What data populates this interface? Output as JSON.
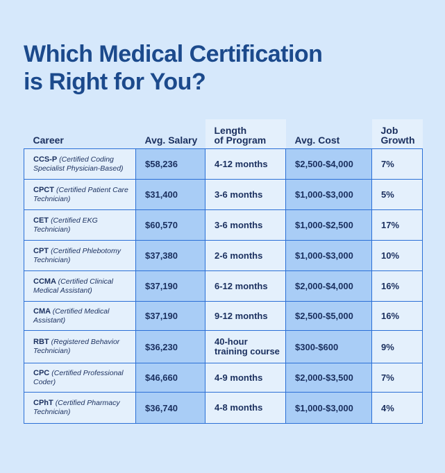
{
  "title": {
    "line1": "Which Medical Certification",
    "line2": "is Right for You?"
  },
  "colors": {
    "background": "#d6e8fb",
    "title": "#1c4a8c",
    "cell_light": "#e4f0fc",
    "cell_shaded": "#a9cdf6",
    "border": "#2a6fd6"
  },
  "table": {
    "headers": {
      "career": "Career",
      "salary": "Avg. Salary",
      "length_line1": "Length",
      "length_line2": "of Program",
      "cost": "Avg. Cost",
      "growth_line1": "Job",
      "growth_line2": "Growth"
    },
    "rows": [
      {
        "name": "CCS-P",
        "desc": "(Certified Coding Specialist Physician-Based)",
        "salary": "$58,236",
        "length": "4-12 months",
        "length2": "",
        "cost": "$2,500-$4,000",
        "growth": "7%"
      },
      {
        "name": "CPCT",
        "desc": "(Certified Patient Care Technician)",
        "salary": "$31,400",
        "length": "3-6 months",
        "length2": "",
        "cost": "$1,000-$3,000",
        "growth": "5%"
      },
      {
        "name": "CET",
        "desc": "(Certified EKG Technician)",
        "salary": "$60,570",
        "length": "3-6 months",
        "length2": "",
        "cost": "$1,000-$2,500",
        "growth": "17%"
      },
      {
        "name": "CPT",
        "desc": "(Certified Phlebotomy Technician)",
        "salary": "$37,380",
        "length": "2-6 months",
        "length2": "",
        "cost": "$1,000-$3,000",
        "growth": "10%"
      },
      {
        "name": "CCMA",
        "desc": "(Certified Clinical Medical Assistant)",
        "salary": "$37,190",
        "length": "6-12 months",
        "length2": "",
        "cost": "$2,000-$4,000",
        "growth": "16%"
      },
      {
        "name": "CMA",
        "desc": "(Certified Medical Assistant)",
        "salary": "$37,190",
        "length": "9-12 months",
        "length2": "",
        "cost": "$2,500-$5,000",
        "growth": "16%"
      },
      {
        "name": "RBT",
        "desc": "(Registered Behavior Technician)",
        "salary": "$36,230",
        "length": "40-hour",
        "length2": "training course",
        "cost": "$300-$600",
        "growth": "9%"
      },
      {
        "name": "CPC",
        "desc": "(Certified Professional Coder)",
        "salary": "$46,660",
        "length": "4-9 months",
        "length2": "",
        "cost": "$2,000-$3,500",
        "growth": " 7%"
      },
      {
        "name": "CPhT",
        "desc": "(Certified Pharmacy Technician)",
        "salary": "$36,740",
        "length": "4-8 months",
        "length2": "",
        "cost": "$1,000-$3,000",
        "growth": "4%"
      }
    ]
  }
}
